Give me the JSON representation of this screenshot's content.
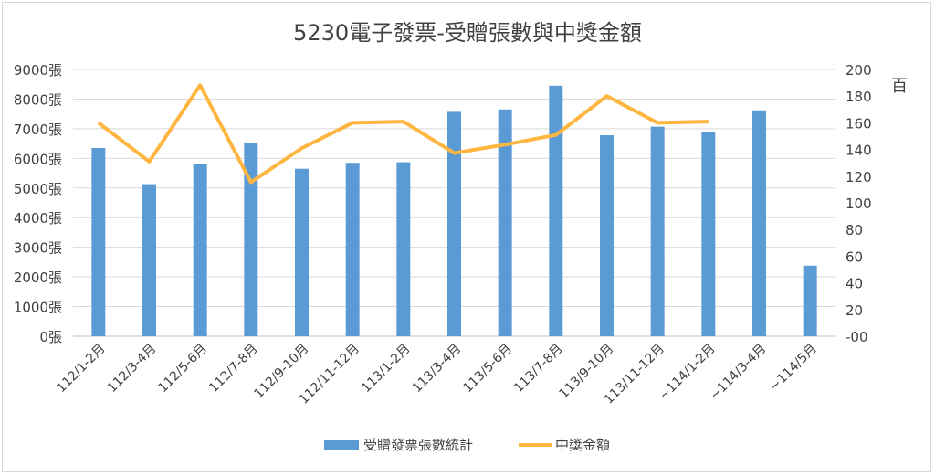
{
  "chart_data": {
    "type": "bar+line",
    "title": "5230電子發票-受贈張數與中獎金額",
    "categories": [
      "112/1-2月",
      "112/3-4月",
      "112/5-6月",
      "112/7-8月",
      "112/9-10月",
      "112/11-12月",
      "113/1-2月",
      "113/3-4月",
      "113/5-6月",
      "113/7-8月",
      "113/9-10月",
      "113/11-12月",
      "~114/1-2月",
      "~114/3-4月",
      "~114/5月"
    ],
    "y_left": {
      "ylim": [
        0,
        9000
      ],
      "ticks": [
        "0張",
        "1000張",
        "2000張",
        "3000張",
        "4000張",
        "5000張",
        "6000張",
        "7000張",
        "8000張",
        "9000張"
      ]
    },
    "y_right": {
      "ylim": [
        -20,
        200
      ],
      "unit_label": "百",
      "ticks": [
        "-00",
        "20",
        "40",
        "60",
        "80",
        "100",
        "120",
        "140",
        "160",
        "180",
        "200"
      ]
    },
    "series": [
      {
        "name": "受贈發票張數統計",
        "type": "bar",
        "axis": "left",
        "color": "#5b9bd5",
        "values": [
          6350,
          5130,
          5800,
          6530,
          5650,
          5850,
          5870,
          7570,
          7650,
          8450,
          6780,
          7070,
          6900,
          7620,
          2380
        ]
      },
      {
        "name": "中獎金額",
        "type": "line",
        "axis": "right",
        "color": "#ffb640",
        "values": [
          156,
          124,
          187,
          107,
          135,
          156,
          157,
          131,
          138,
          146,
          178,
          156,
          157,
          null,
          null
        ]
      }
    ],
    "grid": true,
    "legend_position": "bottom"
  }
}
